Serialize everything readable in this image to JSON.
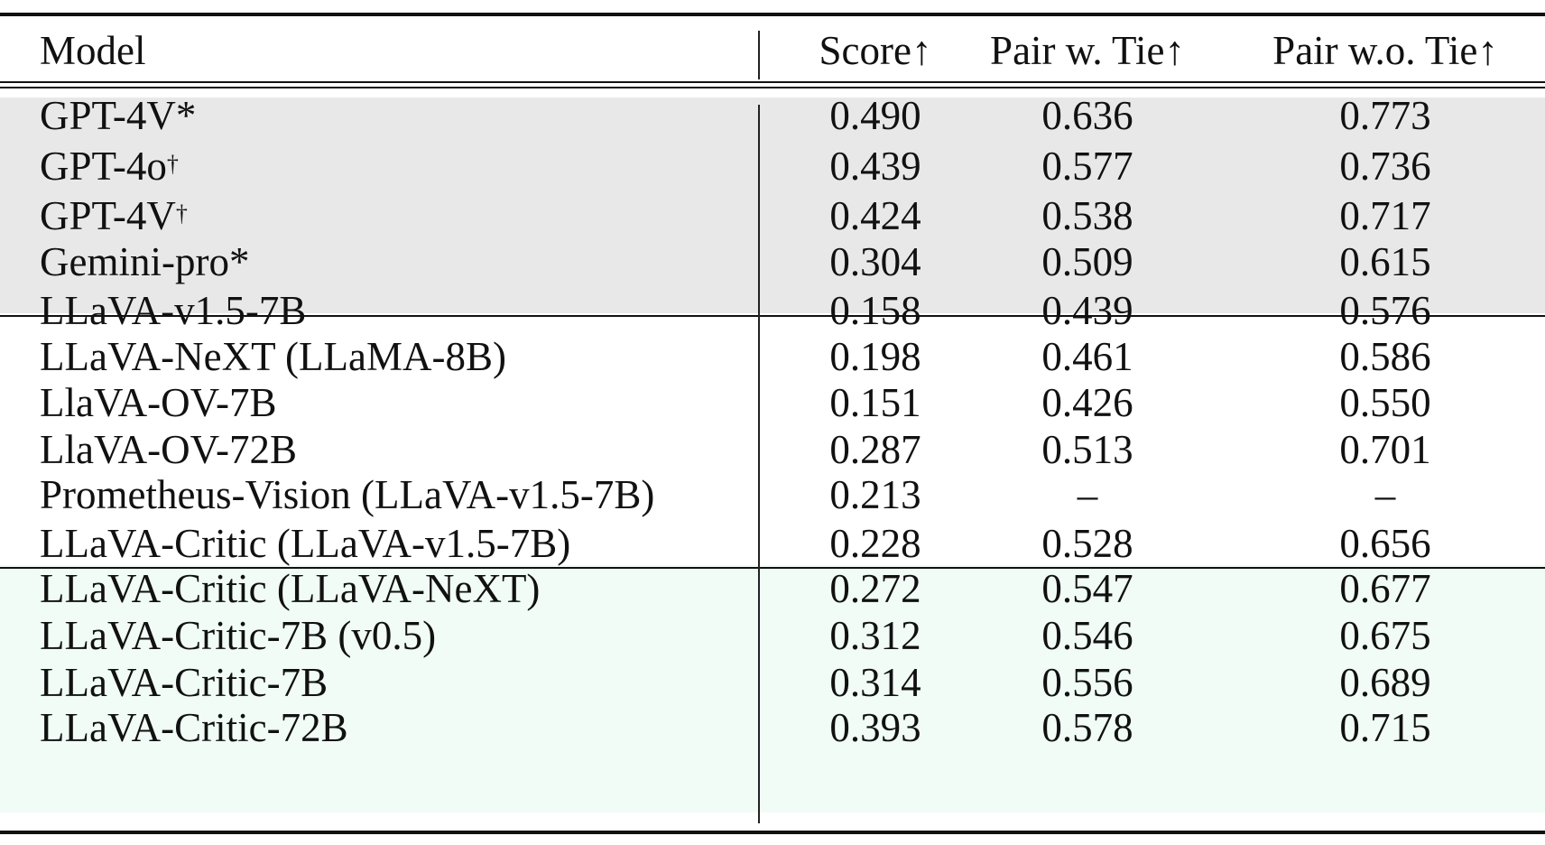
{
  "table": {
    "headers": [
      "Model",
      "Score↑",
      "Pair w. Tie↑",
      "Pair w.o. Tie↑"
    ],
    "groups": [
      {
        "background": "#e8e8e8",
        "rows": [
          {
            "model": "GPT-4V*",
            "sup": "",
            "score": "0.490",
            "pair_w_tie": "0.636",
            "pair_wo_tie": "0.773"
          },
          {
            "model": "GPT-4o",
            "sup": "†",
            "score": "0.439",
            "pair_w_tie": "0.577",
            "pair_wo_tie": "0.736"
          },
          {
            "model": "GPT-4V",
            "sup": "†",
            "score": "0.424",
            "pair_w_tie": "0.538",
            "pair_wo_tie": "0.717"
          },
          {
            "model": "Gemini-pro*",
            "sup": "",
            "score": "0.304",
            "pair_w_tie": "0.509",
            "pair_wo_tie": "0.615"
          }
        ]
      },
      {
        "background": "#ffffff",
        "rows": [
          {
            "model": "LLaVA-v1.5-7B",
            "sup": "",
            "score": "0.158",
            "pair_w_tie": "0.439",
            "pair_wo_tie": "0.576"
          },
          {
            "model": "LLaVA-NeXT (LLaMA-8B)",
            "sup": "",
            "score": "0.198",
            "pair_w_tie": "0.461",
            "pair_wo_tie": "0.586"
          },
          {
            "model": "LlaVA-OV-7B",
            "sup": "",
            "score": "0.151",
            "pair_w_tie": "0.426",
            "pair_wo_tie": "0.550"
          },
          {
            "model": "LlaVA-OV-72B",
            "sup": "",
            "score": "0.287",
            "pair_w_tie": "0.513",
            "pair_wo_tie": "0.701"
          },
          {
            "model": "Prometheus-Vision (LLaVA-v1.5-7B)",
            "sup": "",
            "score": "0.213",
            "pair_w_tie": "–",
            "pair_wo_tie": "–"
          }
        ]
      },
      {
        "background": "#f1fcf7",
        "rows": [
          {
            "model": "LLaVA-Critic (LLaVA-v1.5-7B)",
            "sup": "",
            "score": "0.228",
            "pair_w_tie": "0.528",
            "pair_wo_tie": "0.656"
          },
          {
            "model": "LLaVA-Critic (LLaVA-NeXT)",
            "sup": "",
            "score": "0.272",
            "pair_w_tie": "0.547",
            "pair_wo_tie": "0.677"
          },
          {
            "model": "LLaVA-Critic-7B (v0.5)",
            "sup": "",
            "score": "0.312",
            "pair_w_tie": "0.546",
            "pair_wo_tie": "0.675"
          },
          {
            "model": "LLaVA-Critic-7B",
            "sup": "",
            "score": "0.314",
            "pair_w_tie": "0.556",
            "pair_wo_tie": "0.689"
          },
          {
            "model": "LLaVA-Critic-72B",
            "sup": "",
            "score": "0.393",
            "pair_w_tie": "0.578",
            "pair_wo_tie": "0.715"
          }
        ]
      }
    ]
  }
}
